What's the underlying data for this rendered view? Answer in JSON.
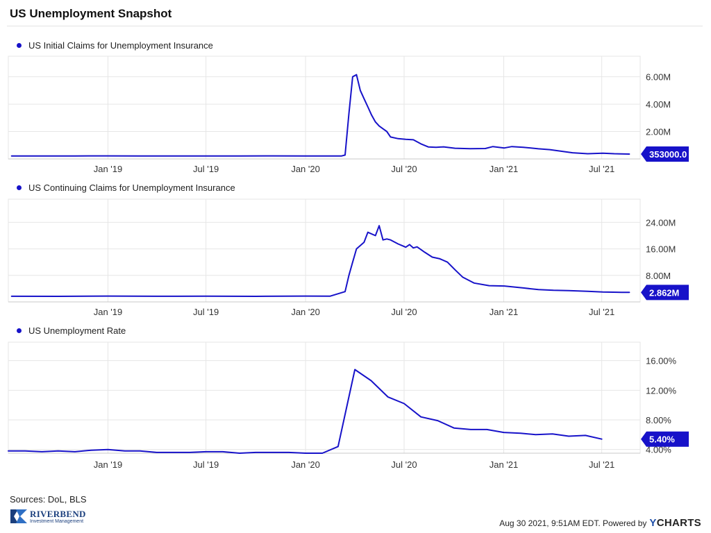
{
  "page": {
    "title": "US Unemployment Snapshot",
    "sources": "Sources: DoL, BLS",
    "timestamp": "Aug 30 2021, 9:51AM EDT. Powered by",
    "powered_by_y": "Y",
    "powered_by_rest": "CHARTS",
    "logo_name": "RIVERBEND",
    "logo_sub": "Investment Management"
  },
  "colors": {
    "series": "#1712c9",
    "grid": "#e6e6e6",
    "axis": "#c8c8c8",
    "tick_text": "#333333"
  },
  "chart_data": [
    {
      "type": "line",
      "legend": "US Initial Claims for Unemployment Insurance",
      "x_ticks": [
        "Jan '19",
        "Jul '19",
        "Jan '20",
        "Jul '20",
        "Jan '21",
        "Jul '21"
      ],
      "x_tick_dates": [
        "2019-01-01",
        "2019-07-01",
        "2020-01-01",
        "2020-07-01",
        "2021-01-01",
        "2021-07-01"
      ],
      "xlim": [
        "2018-07-01",
        "2021-09-10"
      ],
      "y_ticks": [
        2000000,
        4000000,
        6000000
      ],
      "y_tick_labels": [
        "2.00M",
        "4.00M",
        "6.00M"
      ],
      "ylim": [
        0,
        7500000
      ],
      "grid": true,
      "last_value_label": "353000.0",
      "series": [
        {
          "x": [
            "2018-07-07",
            "2018-09-01",
            "2018-11-01",
            "2019-01-01",
            "2019-03-01",
            "2019-05-01",
            "2019-07-01",
            "2019-09-01",
            "2019-11-01",
            "2020-01-01",
            "2020-02-01",
            "2020-03-07",
            "2020-03-14",
            "2020-03-21",
            "2020-03-28",
            "2020-04-04",
            "2020-04-11",
            "2020-04-18",
            "2020-04-25",
            "2020-05-02",
            "2020-05-09",
            "2020-05-16",
            "2020-05-23",
            "2020-05-30",
            "2020-06-06",
            "2020-06-20",
            "2020-07-04",
            "2020-07-18",
            "2020-08-01",
            "2020-08-15",
            "2020-08-29",
            "2020-09-12",
            "2020-10-03",
            "2020-10-31",
            "2020-11-28",
            "2020-12-12",
            "2021-01-02",
            "2021-01-16",
            "2021-02-06",
            "2021-03-06",
            "2021-03-27",
            "2021-04-17",
            "2021-05-08",
            "2021-06-05",
            "2021-07-03",
            "2021-07-24",
            "2021-08-21"
          ],
          "y": [
            215000,
            212000,
            220000,
            222000,
            220000,
            218000,
            215000,
            212000,
            225000,
            212000,
            215000,
            211000,
            282000,
            3300000,
            6000000,
            6150000,
            5000000,
            4400000,
            3800000,
            3200000,
            2700000,
            2400000,
            2200000,
            2000000,
            1600000,
            1480000,
            1430000,
            1400000,
            1100000,
            870000,
            850000,
            880000,
            780000,
            750000,
            760000,
            900000,
            800000,
            900000,
            850000,
            740000,
            680000,
            560000,
            450000,
            380000,
            420000,
            380000,
            353000
          ]
        }
      ]
    },
    {
      "type": "line",
      "legend": "US Continuing Claims for Unemployment Insurance",
      "x_ticks": [
        "Jan '19",
        "Jul '19",
        "Jan '20",
        "Jul '20",
        "Jan '21",
        "Jul '21"
      ],
      "x_tick_dates": [
        "2019-01-01",
        "2019-07-01",
        "2020-01-01",
        "2020-07-01",
        "2021-01-01",
        "2021-07-01"
      ],
      "xlim": [
        "2018-07-01",
        "2021-09-10"
      ],
      "y_ticks": [
        8000000,
        16000000,
        24000000
      ],
      "y_tick_labels": [
        "8.00M",
        "16.00M",
        "24.00M"
      ],
      "ylim": [
        0,
        31000000
      ],
      "grid": true,
      "last_value_label": "2.862M",
      "series": [
        {
          "x": [
            "2018-07-07",
            "2018-10-01",
            "2019-01-01",
            "2019-04-01",
            "2019-07-01",
            "2019-10-01",
            "2020-01-01",
            "2020-02-15",
            "2020-03-14",
            "2020-03-21",
            "2020-03-28",
            "2020-04-04",
            "2020-04-18",
            "2020-04-25",
            "2020-05-09",
            "2020-05-16",
            "2020-05-23",
            "2020-05-30",
            "2020-06-06",
            "2020-06-20",
            "2020-06-27",
            "2020-07-04",
            "2020-07-11",
            "2020-07-18",
            "2020-07-25",
            "2020-08-08",
            "2020-08-22",
            "2020-09-05",
            "2020-09-19",
            "2020-10-03",
            "2020-10-17",
            "2020-11-07",
            "2020-12-05",
            "2021-01-02",
            "2021-02-06",
            "2021-03-06",
            "2021-04-03",
            "2021-05-01",
            "2021-06-05",
            "2021-07-03",
            "2021-08-07",
            "2021-08-21"
          ],
          "y": [
            1700000,
            1680000,
            1750000,
            1700000,
            1720000,
            1680000,
            1750000,
            1720000,
            3100000,
            8000000,
            12000000,
            16000000,
            18000000,
            21000000,
            20000000,
            23000000,
            18700000,
            19000000,
            18700000,
            17500000,
            17000000,
            16500000,
            17300000,
            16300000,
            16600000,
            15000000,
            13500000,
            13000000,
            12000000,
            9700000,
            7500000,
            5700000,
            4900000,
            4800000,
            4200000,
            3700000,
            3500000,
            3400000,
            3200000,
            3000000,
            2900000,
            2862000
          ]
        }
      ]
    },
    {
      "type": "line",
      "legend": "US Unemployment Rate",
      "x_ticks": [
        "Jan '19",
        "Jul '19",
        "Jan '20",
        "Jul '20",
        "Jan '21",
        "Jul '21"
      ],
      "x_tick_dates": [
        "2019-01-01",
        "2019-07-01",
        "2020-01-01",
        "2020-07-01",
        "2021-01-01",
        "2021-07-01"
      ],
      "xlim": [
        "2018-07-01",
        "2021-09-10"
      ],
      "y_ticks": [
        4,
        8,
        12,
        16
      ],
      "y_tick_labels": [
        "4.00%",
        "8.00%",
        "12.00%",
        "16.00%"
      ],
      "ylim": [
        3.5,
        18.5
      ],
      "grid": true,
      "last_value_label": "5.40%",
      "series": [
        {
          "x": [
            "2018-07-01",
            "2018-08-01",
            "2018-09-01",
            "2018-10-01",
            "2018-11-01",
            "2018-12-01",
            "2019-01-01",
            "2019-02-01",
            "2019-03-01",
            "2019-04-01",
            "2019-05-01",
            "2019-06-01",
            "2019-07-01",
            "2019-08-01",
            "2019-09-01",
            "2019-10-01",
            "2019-11-01",
            "2019-12-01",
            "2020-01-01",
            "2020-02-01",
            "2020-03-01",
            "2020-04-01",
            "2020-05-01",
            "2020-06-01",
            "2020-07-01",
            "2020-08-01",
            "2020-09-01",
            "2020-10-01",
            "2020-11-01",
            "2020-12-01",
            "2021-01-01",
            "2021-02-01",
            "2021-03-01",
            "2021-04-01",
            "2021-05-01",
            "2021-06-01",
            "2021-07-01"
          ],
          "y": [
            3.8,
            3.8,
            3.7,
            3.8,
            3.7,
            3.9,
            4.0,
            3.8,
            3.8,
            3.6,
            3.6,
            3.6,
            3.7,
            3.7,
            3.5,
            3.6,
            3.6,
            3.6,
            3.5,
            3.5,
            4.4,
            14.8,
            13.3,
            11.1,
            10.2,
            8.4,
            7.9,
            6.9,
            6.7,
            6.7,
            6.3,
            6.2,
            6.0,
            6.1,
            5.8,
            5.9,
            5.4
          ]
        }
      ]
    }
  ]
}
